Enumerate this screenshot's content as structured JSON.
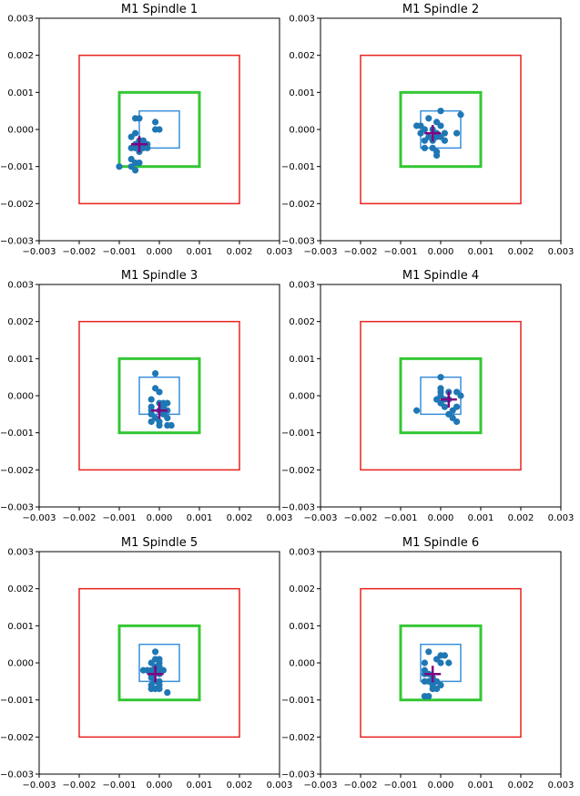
{
  "chart_data": [
    {
      "type": "scatter",
      "title": "M1 Spindle 1",
      "xlim": [
        -0.003,
        0.003
      ],
      "ylim": [
        -0.003,
        0.003
      ],
      "xticks": [
        "−0.003",
        "−0.002",
        "−0.001",
        "0.000",
        "0.001",
        "0.002",
        "0.003"
      ],
      "yticks": [
        "−0.003",
        "−0.002",
        "−0.001",
        "0.000",
        "0.001",
        "0.002",
        "0.003"
      ],
      "points": [
        [
          -0.0006,
          0.0003
        ],
        [
          -0.0005,
          0.0003
        ],
        [
          -0.0007,
          -0.0002
        ],
        [
          -0.0006,
          -0.0001
        ],
        [
          -0.0005,
          -0.0003
        ],
        [
          -0.0004,
          -0.0003
        ],
        [
          -0.0006,
          -0.0004
        ],
        [
          -0.0005,
          -0.0004
        ],
        [
          -0.0003,
          -0.0004
        ],
        [
          -0.0007,
          -0.0005
        ],
        [
          -0.0006,
          -0.0005
        ],
        [
          -0.0004,
          -0.0005
        ],
        [
          -0.0003,
          -0.0005
        ],
        [
          -0.0005,
          -0.0006
        ],
        [
          -0.0007,
          -0.0008
        ],
        [
          -0.0006,
          -0.0009
        ],
        [
          -0.0005,
          -0.0009
        ],
        [
          -0.0007,
          -0.001
        ],
        [
          -0.001,
          -0.001
        ],
        [
          -0.0006,
          -0.0011
        ],
        [
          -0.0001,
          0.0002
        ],
        [
          -0.0001,
          0.0
        ],
        [
          0.0,
          0.0
        ]
      ],
      "mean": [
        -0.0005,
        -0.0004
      ],
      "boxes": [
        {
          "half": 0.002,
          "cx": 0.0,
          "cy": 0.0,
          "color": "#e8231f"
        },
        {
          "half": 0.001,
          "cx": 0.0,
          "cy": 0.0,
          "color": "#34c734"
        },
        {
          "half": 0.0005,
          "cx": 0.0,
          "cy": 0.0,
          "color": "#3a8fdb"
        }
      ],
      "marker_color": "#1f77b4",
      "mean_color": "#800080"
    },
    {
      "type": "scatter",
      "title": "M1 Spindle 2",
      "xlim": [
        -0.003,
        0.003
      ],
      "ylim": [
        -0.003,
        0.003
      ],
      "xticks": [
        "−0.003",
        "−0.002",
        "−0.001",
        "0.000",
        "0.001",
        "0.002",
        "0.003"
      ],
      "yticks": [
        "−0.003",
        "−0.002",
        "−0.001",
        "0.000",
        "0.001",
        "0.002",
        "0.003"
      ],
      "points": [
        [
          0.0,
          0.0005
        ],
        [
          0.0005,
          0.0004
        ],
        [
          -0.0003,
          0.0003
        ],
        [
          -0.0001,
          0.0002
        ],
        [
          0.0,
          0.0001
        ],
        [
          -0.0005,
          0.0001
        ],
        [
          -0.0004,
          0.0
        ],
        [
          -0.0002,
          0.0
        ],
        [
          -0.0001,
          -0.0001
        ],
        [
          0.0001,
          -0.0001
        ],
        [
          0.0004,
          -0.0001
        ],
        [
          -0.0005,
          -0.0001
        ],
        [
          -0.0003,
          -0.0002
        ],
        [
          -0.0001,
          -0.0002
        ],
        [
          0.0,
          -0.0002
        ],
        [
          0.0001,
          -0.0003
        ],
        [
          -0.0002,
          -0.0003
        ],
        [
          -0.0004,
          -0.0003
        ],
        [
          -0.0002,
          -0.0005
        ],
        [
          -0.0004,
          -0.0005
        ],
        [
          -0.0001,
          -0.0006
        ],
        [
          -0.0001,
          -0.0007
        ],
        [
          -0.0006,
          0.0001
        ]
      ],
      "mean": [
        -0.0002,
        -0.0001
      ],
      "boxes": [
        {
          "half": 0.002,
          "cx": 0.0,
          "cy": 0.0,
          "color": "#e8231f"
        },
        {
          "half": 0.001,
          "cx": 0.0,
          "cy": 0.0,
          "color": "#34c734"
        },
        {
          "half": 0.0005,
          "cx": 0.0,
          "cy": 0.0,
          "color": "#3a8fdb"
        }
      ],
      "marker_color": "#1f77b4",
      "mean_color": "#800080"
    },
    {
      "type": "scatter",
      "title": "M1 Spindle 3",
      "xlim": [
        -0.003,
        0.003
      ],
      "ylim": [
        -0.003,
        0.003
      ],
      "xticks": [
        "−0.003",
        "−0.002",
        "−0.001",
        "0.000",
        "0.001",
        "0.002",
        "0.003"
      ],
      "yticks": [
        "−0.003",
        "−0.002",
        "−0.001",
        "0.000",
        "0.001",
        "0.002",
        "0.003"
      ],
      "points": [
        [
          -0.0001,
          0.0006
        ],
        [
          -0.0001,
          0.0002
        ],
        [
          0.0,
          0.0001
        ],
        [
          -0.0002,
          -0.0001
        ],
        [
          0.0,
          -0.0002
        ],
        [
          0.0001,
          -0.0002
        ],
        [
          0.0002,
          -0.0002
        ],
        [
          -0.0002,
          -0.0003
        ],
        [
          0.0001,
          -0.0003
        ],
        [
          -0.0002,
          -0.0004
        ],
        [
          0.0,
          -0.0004
        ],
        [
          0.0002,
          -0.0004
        ],
        [
          -0.0002,
          -0.0005
        ],
        [
          0.0001,
          -0.0005
        ],
        [
          -0.0001,
          -0.0006
        ],
        [
          0.0002,
          -0.0006
        ],
        [
          -0.0002,
          -0.0007
        ],
        [
          0.0,
          -0.0007
        ],
        [
          0.0002,
          -0.0008
        ],
        [
          0.0003,
          -0.0008
        ],
        [
          0.0,
          -0.0008
        ]
      ],
      "mean": [
        0.0,
        -0.0004
      ],
      "boxes": [
        {
          "half": 0.002,
          "cx": 0.0,
          "cy": 0.0,
          "color": "#e8231f"
        },
        {
          "half": 0.001,
          "cx": 0.0,
          "cy": 0.0,
          "color": "#34c734"
        },
        {
          "half": 0.0005,
          "cx": 0.0,
          "cy": 0.0,
          "color": "#3a8fdb"
        }
      ],
      "marker_color": "#1f77b4",
      "mean_color": "#800080"
    },
    {
      "type": "scatter",
      "title": "M1 Spindle 4",
      "xlim": [
        -0.003,
        0.003
      ],
      "ylim": [
        -0.003,
        0.003
      ],
      "xticks": [
        "−0.003",
        "−0.002",
        "−0.001",
        "0.000",
        "0.001",
        "0.002",
        "0.003"
      ],
      "yticks": [
        "−0.003",
        "−0.002",
        "−0.001",
        "0.000",
        "0.001",
        "0.002",
        "0.003"
      ],
      "points": [
        [
          0.0,
          0.0005
        ],
        [
          0.0,
          0.0002
        ],
        [
          0.0002,
          0.0001
        ],
        [
          0.0004,
          0.0001
        ],
        [
          0.0005,
          0.0
        ],
        [
          0.0,
          0.0
        ],
        [
          -0.0001,
          -0.0001
        ],
        [
          0.0001,
          -0.0001
        ],
        [
          0.0002,
          -0.0001
        ],
        [
          0.0,
          -0.0002
        ],
        [
          0.0001,
          -0.0003
        ],
        [
          0.0004,
          -0.0003
        ],
        [
          -0.0006,
          -0.0004
        ],
        [
          0.0003,
          -0.0004
        ],
        [
          0.0002,
          -0.0005
        ],
        [
          0.0003,
          -0.0006
        ],
        [
          0.0004,
          -0.0007
        ],
        [
          0.0,
          0.0001
        ]
      ],
      "mean": [
        0.0002,
        -0.0001
      ],
      "boxes": [
        {
          "half": 0.002,
          "cx": 0.0,
          "cy": 0.0,
          "color": "#e8231f"
        },
        {
          "half": 0.001,
          "cx": 0.0,
          "cy": 0.0,
          "color": "#34c734"
        },
        {
          "half": 0.0005,
          "cx": 0.0,
          "cy": 0.0,
          "color": "#3a8fdb"
        }
      ],
      "marker_color": "#1f77b4",
      "mean_color": "#800080"
    },
    {
      "type": "scatter",
      "title": "M1 Spindle 5",
      "xlim": [
        -0.003,
        0.003
      ],
      "ylim": [
        -0.003,
        0.003
      ],
      "xticks": [
        "−0.003",
        "−0.002",
        "−0.001",
        "0.000",
        "0.001",
        "0.002",
        "0.003"
      ],
      "yticks": [
        "−0.003",
        "−0.002",
        "−0.001",
        "0.000",
        "0.001",
        "0.002",
        "0.003"
      ],
      "points": [
        [
          -0.0001,
          0.0003
        ],
        [
          -0.0001,
          0.0001
        ],
        [
          0.0,
          0.0001
        ],
        [
          -0.0002,
          0.0
        ],
        [
          0.0,
          0.0
        ],
        [
          -0.0001,
          -0.0001
        ],
        [
          0.0,
          -0.0001
        ],
        [
          -0.0004,
          -0.0002
        ],
        [
          -0.0003,
          -0.0002
        ],
        [
          -0.0002,
          -0.0002
        ],
        [
          0.0,
          -0.0002
        ],
        [
          0.0001,
          -0.0002
        ],
        [
          -0.0002,
          -0.0003
        ],
        [
          0.0,
          -0.0003
        ],
        [
          -0.0002,
          -0.0004
        ],
        [
          -0.0001,
          -0.0005
        ],
        [
          0.0,
          -0.0005
        ],
        [
          -0.0002,
          -0.0006
        ],
        [
          0.0,
          -0.0006
        ],
        [
          -0.0002,
          -0.0007
        ],
        [
          -0.0001,
          -0.0007
        ],
        [
          0.0,
          -0.0007
        ],
        [
          0.0002,
          -0.0008
        ]
      ],
      "mean": [
        -0.0001,
        -0.0003
      ],
      "boxes": [
        {
          "half": 0.002,
          "cx": 0.0,
          "cy": 0.0,
          "color": "#e8231f"
        },
        {
          "half": 0.001,
          "cx": 0.0,
          "cy": 0.0,
          "color": "#34c734"
        },
        {
          "half": 0.0005,
          "cx": 0.0,
          "cy": 0.0,
          "color": "#3a8fdb"
        }
      ],
      "marker_color": "#1f77b4",
      "mean_color": "#800080"
    },
    {
      "type": "scatter",
      "title": "M1 Spindle 6",
      "xlim": [
        -0.003,
        0.003
      ],
      "ylim": [
        -0.003,
        0.003
      ],
      "xticks": [
        "−0.003",
        "−0.002",
        "−0.001",
        "0.000",
        "0.001",
        "0.002",
        "0.003"
      ],
      "yticks": [
        "−0.003",
        "−0.002",
        "−0.001",
        "0.000",
        "0.001",
        "0.002",
        "0.003"
      ],
      "points": [
        [
          -0.0003,
          0.0003
        ],
        [
          0.0,
          0.0002
        ],
        [
          0.0001,
          0.0002
        ],
        [
          -0.0001,
          0.0001
        ],
        [
          0.0,
          0.0
        ],
        [
          0.0002,
          0.0
        ],
        [
          -0.0004,
          0.0
        ],
        [
          -0.0004,
          -0.0002
        ],
        [
          -0.0004,
          -0.0003
        ],
        [
          -0.0003,
          -0.0003
        ],
        [
          -0.0002,
          -0.0004
        ],
        [
          -0.0004,
          -0.0005
        ],
        [
          -0.0003,
          -0.0005
        ],
        [
          -0.0001,
          -0.0005
        ],
        [
          -0.0002,
          -0.0006
        ],
        [
          0.0,
          -0.0006
        ],
        [
          -0.0002,
          -0.0007
        ],
        [
          -0.0001,
          -0.0007
        ],
        [
          -0.0004,
          -0.0009
        ],
        [
          -0.0003,
          -0.0009
        ]
      ],
      "mean": [
        -0.0002,
        -0.0003
      ],
      "boxes": [
        {
          "half": 0.002,
          "cx": 0.0,
          "cy": 0.0,
          "color": "#e8231f"
        },
        {
          "half": 0.001,
          "cx": 0.0,
          "cy": 0.0,
          "color": "#34c734"
        },
        {
          "half": 0.0005,
          "cx": 0.0,
          "cy": 0.0,
          "color": "#3a8fdb"
        }
      ],
      "marker_color": "#1f77b4",
      "mean_color": "#800080"
    }
  ]
}
